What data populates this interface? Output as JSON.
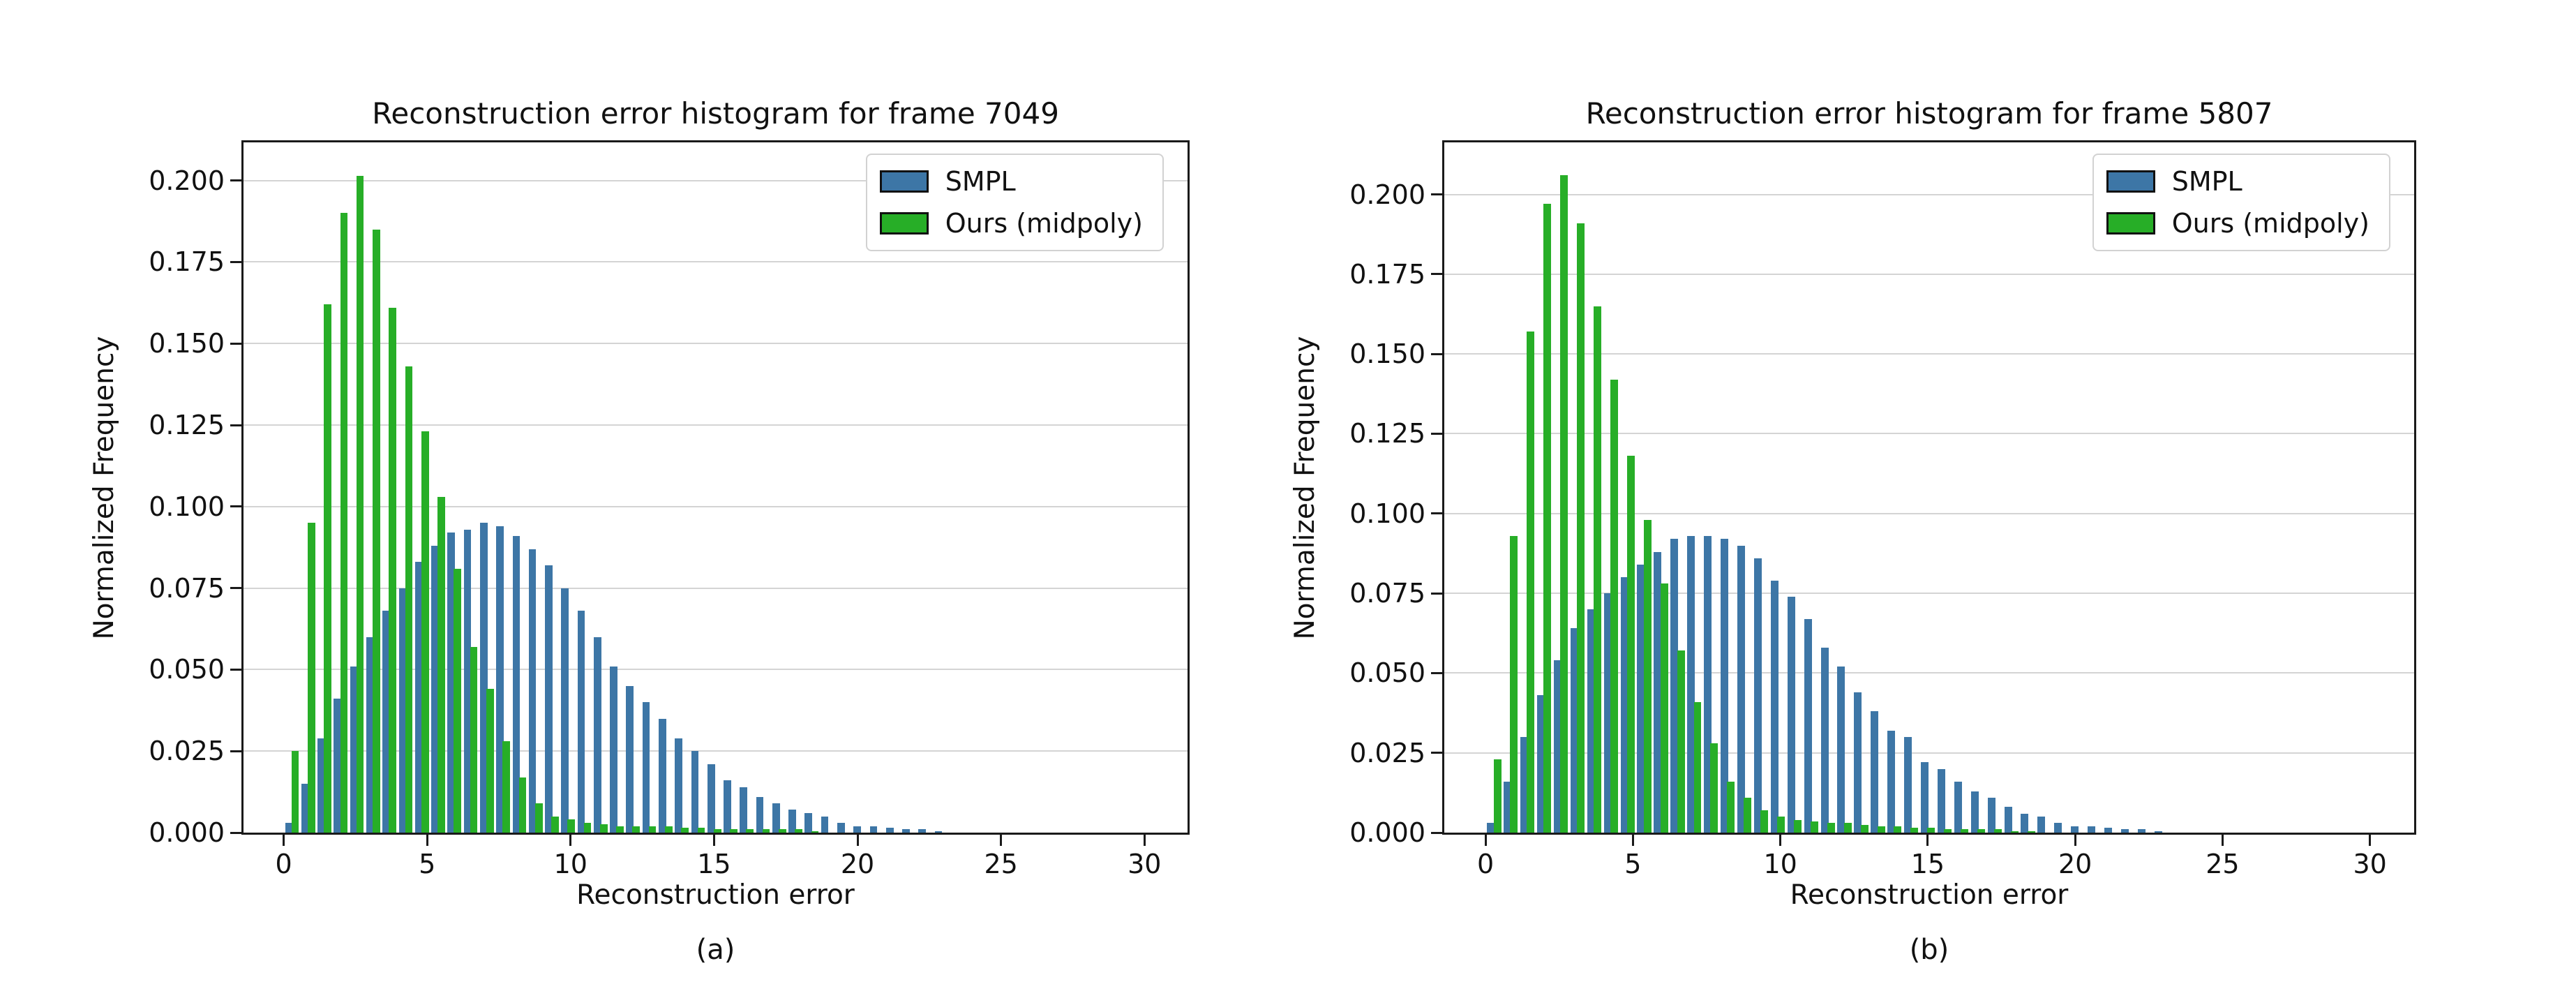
{
  "page": {
    "background": "#ffffff"
  },
  "colors": {
    "smpl_blue": "#3d76a6",
    "ours_green": "#27ae27",
    "grid": "#d4d4d4",
    "axis": "#1a1a1a",
    "text": "#111111",
    "legend_border": "#d2d2d2",
    "legend_bg": "#ffffff"
  },
  "chart_data": [
    {
      "type": "bar",
      "title": "Reconstruction error histogram for frame 7049",
      "xlabel": "Reconstruction error",
      "ylabel": "Normalized Frequency",
      "caption": "(a)",
      "legend_position": "upper right",
      "grid": "horizontal",
      "xlim": [
        -1.4,
        31.5
      ],
      "ylim": [
        0,
        0.2117
      ],
      "xticks": [
        "0",
        "5",
        "10",
        "15",
        "20",
        "25",
        "30"
      ],
      "yticks": [
        "0.000",
        "0.025",
        "0.050",
        "0.075",
        "0.100",
        "0.125",
        "0.150",
        "0.175",
        "0.200"
      ],
      "bar_width": 0.26,
      "legend": [
        {
          "label": "SMPL",
          "color_key": "smpl_blue"
        },
        {
          "label": "Ours (midpoly)",
          "color_key": "ours_green"
        }
      ],
      "series": [
        {
          "name": "SMPL",
          "color_key": "smpl_blue",
          "x_start": 0.18,
          "x_step": 0.566,
          "values": [
            0.003,
            0.015,
            0.029,
            0.041,
            0.051,
            0.06,
            0.068,
            0.075,
            0.083,
            0.088,
            0.092,
            0.093,
            0.095,
            0.094,
            0.091,
            0.087,
            0.082,
            0.075,
            0.068,
            0.06,
            0.051,
            0.045,
            0.04,
            0.035,
            0.029,
            0.025,
            0.021,
            0.016,
            0.014,
            0.011,
            0.009,
            0.007,
            0.006,
            0.005,
            0.003,
            0.002,
            0.002,
            0.0015,
            0.001,
            0.001,
            0.0005
          ]
        },
        {
          "name": "Ours (midpoly)",
          "color_key": "ours_green",
          "x_start": 0.4,
          "x_step": 0.566,
          "values": [
            0.025,
            0.095,
            0.162,
            0.19,
            0.2015,
            0.185,
            0.161,
            0.143,
            0.123,
            0.103,
            0.081,
            0.057,
            0.044,
            0.028,
            0.017,
            0.009,
            0.005,
            0.004,
            0.003,
            0.0025,
            0.002,
            0.002,
            0.002,
            0.002,
            0.0015,
            0.0015,
            0.001,
            0.001,
            0.001,
            0.001,
            0.001,
            0.001,
            0.0005
          ]
        }
      ]
    },
    {
      "type": "bar",
      "title": "Reconstruction error histogram for frame 5807",
      "xlabel": "Reconstruction error",
      "ylabel": "Normalized Frequency",
      "caption": "(b)",
      "legend_position": "upper right",
      "grid": "horizontal",
      "xlim": [
        -1.4,
        31.5
      ],
      "ylim": [
        0,
        0.2163
      ],
      "xticks": [
        "0",
        "5",
        "10",
        "15",
        "20",
        "25",
        "30"
      ],
      "yticks": [
        "0.000",
        "0.025",
        "0.050",
        "0.075",
        "0.100",
        "0.125",
        "0.150",
        "0.175",
        "0.200"
      ],
      "bar_width": 0.26,
      "legend": [
        {
          "label": "SMPL",
          "color_key": "smpl_blue"
        },
        {
          "label": "Ours (midpoly)",
          "color_key": "ours_green"
        }
      ],
      "series": [
        {
          "name": "SMPL",
          "color_key": "smpl_blue",
          "x_start": 0.18,
          "x_step": 0.566,
          "values": [
            0.003,
            0.016,
            0.03,
            0.043,
            0.054,
            0.064,
            0.07,
            0.075,
            0.08,
            0.084,
            0.088,
            0.092,
            0.093,
            0.093,
            0.092,
            0.09,
            0.086,
            0.079,
            0.074,
            0.067,
            0.058,
            0.052,
            0.044,
            0.038,
            0.032,
            0.03,
            0.022,
            0.02,
            0.016,
            0.013,
            0.011,
            0.008,
            0.006,
            0.005,
            0.003,
            0.002,
            0.002,
            0.0015,
            0.001,
            0.001,
            0.0005
          ]
        },
        {
          "name": "Ours (midpoly)",
          "color_key": "ours_green",
          "x_start": 0.4,
          "x_step": 0.566,
          "values": [
            0.023,
            0.093,
            0.157,
            0.197,
            0.206,
            0.191,
            0.165,
            0.142,
            0.118,
            0.098,
            0.078,
            0.057,
            0.041,
            0.028,
            0.016,
            0.011,
            0.007,
            0.005,
            0.004,
            0.0035,
            0.003,
            0.003,
            0.0025,
            0.002,
            0.002,
            0.0015,
            0.0015,
            0.001,
            0.001,
            0.001,
            0.001,
            0.0005,
            0.0005
          ]
        }
      ]
    }
  ]
}
